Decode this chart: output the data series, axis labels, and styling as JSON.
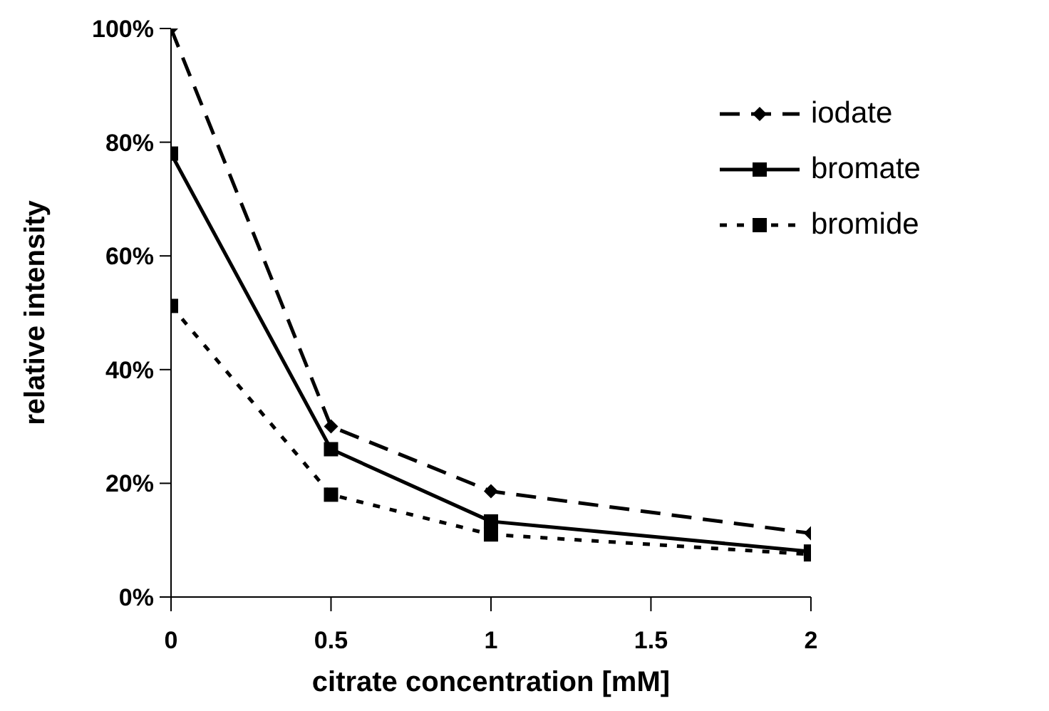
{
  "chart_data": {
    "type": "line",
    "xlabel": "citrate concentration [mM]",
    "ylabel": "relative intensity",
    "x": [
      0,
      0.5,
      1,
      2
    ],
    "series": [
      {
        "name": "iodate",
        "color": "#000000",
        "values": [
          100,
          30,
          18.6,
          11.2
        ],
        "marker": "diamond",
        "line_style": "dashed"
      },
      {
        "name": "bromate",
        "color": "#000000",
        "values": [
          78,
          26,
          13.3,
          8
        ],
        "marker": "square",
        "line_style": "solid"
      },
      {
        "name": "bromide",
        "color": "#000000",
        "values": [
          51.2,
          18,
          11,
          7.5
        ],
        "marker": "square",
        "line_style": "dotted"
      }
    ],
    "xlim": [
      0,
      2
    ],
    "xticks": [
      0,
      0.5,
      1,
      1.5,
      2
    ],
    "ylim": [
      0,
      100
    ],
    "yticks": [
      {
        "value": 0,
        "label": "0%"
      },
      {
        "value": 20,
        "label": "20%"
      },
      {
        "value": 40,
        "label": "40%"
      },
      {
        "value": 60,
        "label": "60%"
      },
      {
        "value": 80,
        "label": "80%"
      },
      {
        "value": 100,
        "label": "100%"
      }
    ],
    "grid": false,
    "legend": "top right"
  }
}
